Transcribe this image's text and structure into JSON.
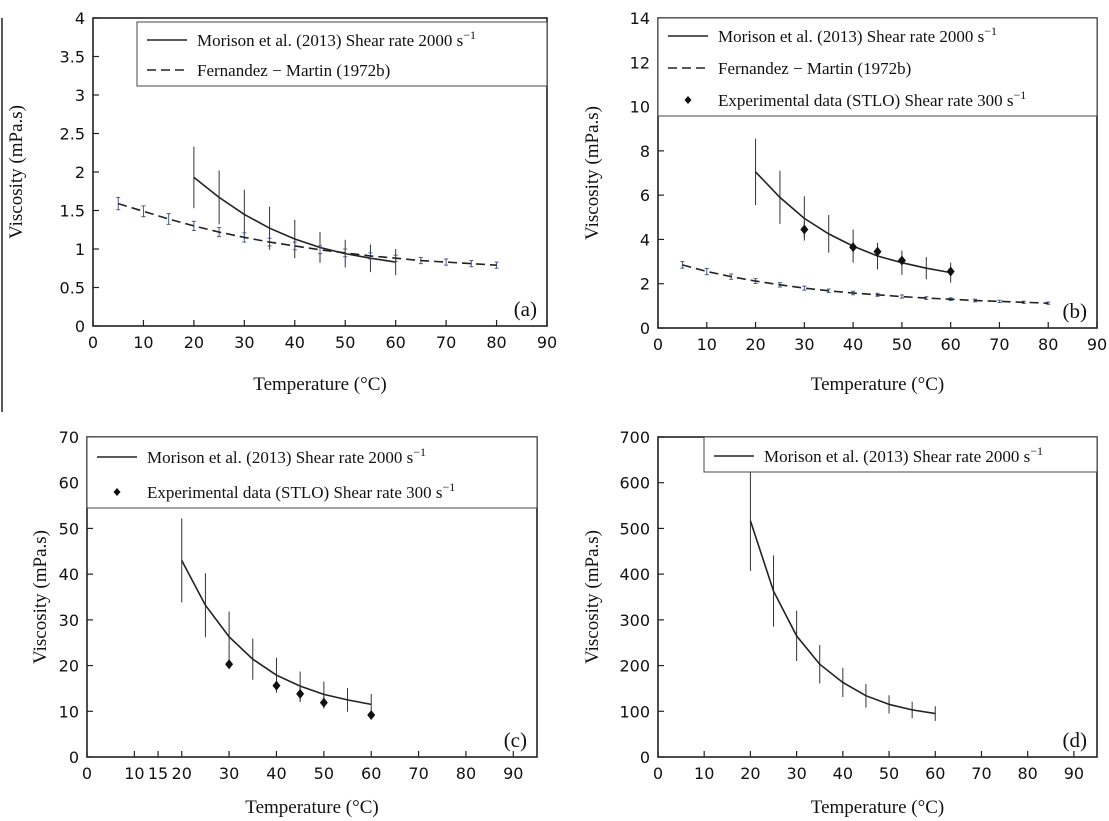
{
  "chart_data": [
    {
      "type": "line",
      "panel_label": "(a)",
      "xlabel": "Temperature (°C)",
      "ylabel": "Viscosity (mPa.s)",
      "xlim": [
        0,
        90
      ],
      "ylim": [
        0,
        4
      ],
      "xticks": [
        0,
        10,
        20,
        30,
        40,
        50,
        60,
        70,
        80,
        90
      ],
      "yticks": [
        0,
        0.5,
        1,
        1.5,
        2,
        2.5,
        3,
        3.5,
        4
      ],
      "legend_position": "top-right",
      "grid": false,
      "series": [
        {
          "name": "Morison et al. (2013) Shear rate 2000 s",
          "name_sup": "−1",
          "style": "solid",
          "x": [
            20,
            25,
            30,
            35,
            40,
            45,
            50,
            55,
            60
          ],
          "y": [
            1.93,
            1.67,
            1.45,
            1.27,
            1.13,
            1.02,
            0.94,
            0.88,
            0.83
          ],
          "err": [
            0.4,
            0.35,
            0.32,
            0.28,
            0.25,
            0.2,
            0.18,
            0.18,
            0.17
          ]
        },
        {
          "name": "Fernandez − Martin (1972b)",
          "style": "dashed",
          "x": [
            5,
            10,
            15,
            20,
            25,
            30,
            35,
            40,
            45,
            50,
            55,
            60,
            65,
            70,
            75,
            80
          ],
          "y": [
            1.59,
            1.49,
            1.39,
            1.3,
            1.22,
            1.15,
            1.09,
            1.04,
            0.99,
            0.95,
            0.91,
            0.88,
            0.85,
            0.83,
            0.81,
            0.79
          ],
          "err": [
            0.08,
            0.07,
            0.07,
            0.06,
            0.06,
            0.06,
            0.05,
            0.05,
            0.05,
            0.05,
            0.04,
            0.04,
            0.04,
            0.04,
            0.04,
            0.04
          ]
        }
      ]
    },
    {
      "type": "line",
      "panel_label": "(b)",
      "xlabel": "Temperature (°C)",
      "ylabel": "Viscosity (mPa.s)",
      "xlim": [
        0,
        90
      ],
      "ylim": [
        0,
        14
      ],
      "xticks": [
        0,
        10,
        20,
        30,
        40,
        50,
        60,
        70,
        80,
        90
      ],
      "yticks": [
        0,
        2,
        4,
        6,
        8,
        10,
        12,
        14
      ],
      "legend_position": "top-right",
      "grid": false,
      "series": [
        {
          "name": "Morison et al. (2013) Shear rate 2000 s",
          "name_sup": "−1",
          "style": "solid",
          "x": [
            20,
            25,
            30,
            35,
            40,
            45,
            50,
            55,
            60
          ],
          "y": [
            7.05,
            5.9,
            4.95,
            4.25,
            3.7,
            3.25,
            2.95,
            2.7,
            2.5
          ],
          "err": [
            1.5,
            1.2,
            1.0,
            0.85,
            0.75,
            0.6,
            0.55,
            0.5,
            0.45
          ]
        },
        {
          "name": "Fernandez − Martin (1972b)",
          "style": "dashed",
          "x": [
            5,
            10,
            15,
            20,
            25,
            30,
            35,
            40,
            45,
            50,
            55,
            60,
            65,
            70,
            75,
            80
          ],
          "y": [
            2.85,
            2.55,
            2.32,
            2.12,
            1.95,
            1.8,
            1.68,
            1.58,
            1.5,
            1.42,
            1.35,
            1.3,
            1.24,
            1.2,
            1.16,
            1.12
          ],
          "err": [
            0.15,
            0.14,
            0.12,
            0.11,
            0.1,
            0.09,
            0.08,
            0.08,
            0.07,
            0.07,
            0.06,
            0.06,
            0.06,
            0.05,
            0.05,
            0.05
          ]
        },
        {
          "name": "Experimental data (STLO) Shear rate 300 s",
          "name_sup": "−1",
          "style": "markers",
          "x": [
            30,
            40,
            45,
            50,
            60
          ],
          "y": [
            4.45,
            3.65,
            3.45,
            3.05,
            2.55
          ],
          "err": [
            0.35,
            0.25,
            0.25,
            0.2,
            0.2
          ]
        }
      ]
    },
    {
      "type": "line",
      "panel_label": "(c)",
      "xlabel": "Temperature (°C)",
      "ylabel": "Viscosity (mPa.s)",
      "xlim": [
        0,
        95
      ],
      "ylim": [
        0,
        70
      ],
      "xticks": [
        0,
        10,
        15,
        20,
        30,
        40,
        50,
        60,
        70,
        80,
        90
      ],
      "yticks": [
        0,
        10,
        20,
        30,
        40,
        50,
        60,
        70
      ],
      "legend_position": "top-right",
      "grid": false,
      "series": [
        {
          "name": "Morison et al. (2013) Shear rate 2000 s",
          "name_sup": "−1",
          "style": "solid",
          "x": [
            20,
            25,
            30,
            35,
            40,
            45,
            50,
            55,
            60
          ],
          "y": [
            43,
            33.2,
            26.3,
            21.4,
            17.9,
            15.5,
            13.7,
            12.5,
            11.5
          ],
          "err": [
            9.2,
            7,
            5.5,
            4.5,
            3.8,
            3.2,
            2.8,
            2.6,
            2.3
          ]
        },
        {
          "name": "Experimental data (STLO) Shear rate 300 s",
          "name_sup": "−1",
          "style": "markers",
          "x": [
            30,
            40,
            45,
            50,
            60
          ],
          "y": [
            20.3,
            15.6,
            13.8,
            11.9,
            9.2
          ],
          "err": [
            0.8,
            1.4,
            1.8,
            1.3,
            0.6
          ]
        }
      ]
    },
    {
      "type": "line",
      "panel_label": "(d)",
      "xlabel": "Temperature (°C)",
      "ylabel": "Viscosity (mPa.s)",
      "xlim": [
        0,
        95
      ],
      "ylim": [
        0,
        700
      ],
      "xticks": [
        0,
        10,
        20,
        30,
        40,
        50,
        60,
        70,
        80,
        90
      ],
      "yticks": [
        0,
        100,
        200,
        300,
        400,
        500,
        600,
        700
      ],
      "legend_position": "top-right",
      "grid": false,
      "series": [
        {
          "name": "Morison et al. (2013) Shear rate 2000 s",
          "name_sup": "−1",
          "style": "solid",
          "x": [
            20,
            25,
            30,
            35,
            40,
            45,
            50,
            55,
            60
          ],
          "y": [
            517,
            363,
            265,
            203,
            163,
            134,
            115,
            103,
            95
          ],
          "err": [
            110,
            78,
            55,
            42,
            32,
            26,
            20,
            18,
            16
          ]
        }
      ]
    }
  ]
}
